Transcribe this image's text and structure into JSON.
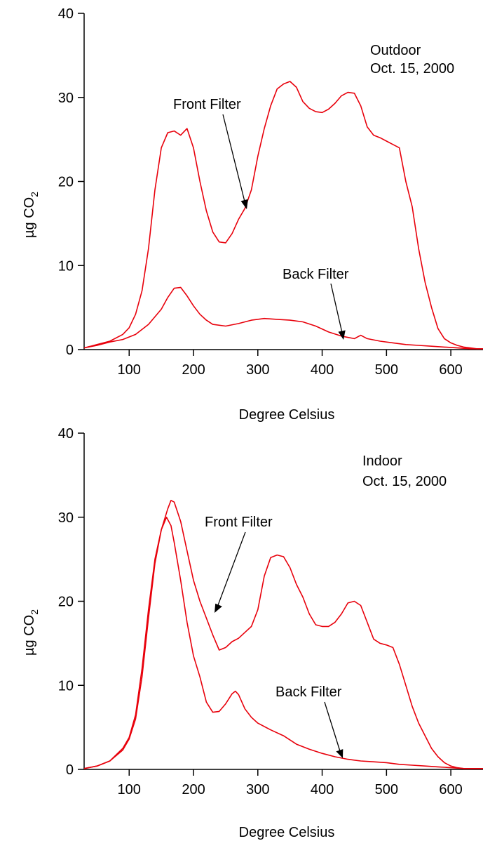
{
  "chart_data": [
    {
      "type": "line",
      "annotations": {
        "location": "Outdoor",
        "date": "Oct. 15, 2000",
        "front_label": "Front Filter",
        "back_label": "Back Filter"
      },
      "xlabel": "Degree Celsius",
      "ylabel_main": "µg CO",
      "ylabel_sub": "2",
      "xlim": [
        30,
        650
      ],
      "ylim": [
        0,
        40
      ],
      "xticks": [
        100,
        200,
        300,
        400,
        500,
        600
      ],
      "yticks": [
        0,
        10,
        20,
        30,
        40
      ],
      "line_color": "#e8000b",
      "series": [
        {
          "name": "Front Filter",
          "x": [
            30,
            50,
            70,
            90,
            100,
            110,
            120,
            130,
            140,
            150,
            160,
            170,
            180,
            190,
            200,
            210,
            220,
            230,
            240,
            250,
            260,
            270,
            280,
            290,
            300,
            310,
            320,
            330,
            340,
            350,
            360,
            370,
            380,
            390,
            400,
            410,
            420,
            430,
            440,
            450,
            460,
            470,
            480,
            490,
            500,
            510,
            520,
            530,
            540,
            550,
            560,
            570,
            580,
            590,
            600,
            610,
            620,
            630,
            640,
            650
          ],
          "y": [
            0.2,
            0.6,
            1.0,
            1.8,
            2.6,
            4.2,
            7,
            12,
            19,
            24,
            25.8,
            26,
            25.5,
            26.3,
            24,
            20,
            16.5,
            14,
            12.8,
            12.7,
            13.8,
            15.5,
            16.8,
            19,
            23,
            26.3,
            29,
            31,
            31.6,
            31.9,
            31.2,
            29.5,
            28.7,
            28.3,
            28.2,
            28.6,
            29.3,
            30.2,
            30.6,
            30.5,
            29,
            26.5,
            25.5,
            25.2,
            24.8,
            24.4,
            24,
            20,
            17,
            12,
            8,
            5,
            2.5,
            1.3,
            0.8,
            0.5,
            0.3,
            0.2,
            0.1,
            0.1
          ]
        },
        {
          "name": "Back Filter",
          "x": [
            30,
            50,
            70,
            90,
            110,
            130,
            150,
            160,
            170,
            180,
            190,
            200,
            210,
            220,
            230,
            250,
            270,
            290,
            310,
            330,
            350,
            370,
            390,
            410,
            430,
            450,
            460,
            470,
            490,
            510,
            530,
            550,
            570,
            590,
            610,
            630,
            650
          ],
          "y": [
            0.2,
            0.5,
            0.9,
            1.2,
            1.8,
            3.0,
            4.8,
            6.2,
            7.3,
            7.4,
            6.4,
            5.2,
            4.2,
            3.5,
            3.0,
            2.8,
            3.1,
            3.5,
            3.7,
            3.6,
            3.5,
            3.3,
            2.8,
            2.1,
            1.6,
            1.3,
            1.7,
            1.3,
            1.0,
            0.8,
            0.6,
            0.5,
            0.4,
            0.3,
            0.2,
            0.1,
            0.1
          ]
        }
      ]
    },
    {
      "type": "line",
      "annotations": {
        "location": "Indoor",
        "date": "Oct. 15, 2000",
        "front_label": "Front Filter",
        "back_label": "Back Filter"
      },
      "xlabel": "Degree Celsius",
      "ylabel_main": "µg CO",
      "ylabel_sub": "2",
      "xlim": [
        30,
        650
      ],
      "ylim": [
        0,
        40
      ],
      "xticks": [
        100,
        200,
        300,
        400,
        500,
        600
      ],
      "yticks": [
        0,
        10,
        20,
        30,
        40
      ],
      "line_color": "#e8000b",
      "series": [
        {
          "name": "Front Filter",
          "x": [
            30,
            50,
            70,
            90,
            100,
            110,
            120,
            130,
            140,
            150,
            160,
            165,
            170,
            180,
            190,
            200,
            210,
            220,
            230,
            240,
            250,
            260,
            270,
            280,
            290,
            300,
            310,
            320,
            330,
            340,
            350,
            360,
            370,
            380,
            390,
            400,
            410,
            420,
            430,
            440,
            450,
            460,
            470,
            480,
            490,
            500,
            510,
            520,
            530,
            540,
            550,
            560,
            570,
            580,
            590,
            600,
            610,
            620,
            630,
            640,
            650
          ],
          "y": [
            0.1,
            0.4,
            1.0,
            2.5,
            3.8,
            6.5,
            12,
            19,
            25,
            28.5,
            31,
            32,
            31.8,
            29.5,
            26,
            22.5,
            20,
            18,
            16,
            14.2,
            14.5,
            15.2,
            15.6,
            16.3,
            17,
            19,
            23,
            25.2,
            25.5,
            25.3,
            24,
            22,
            20.5,
            18.5,
            17.2,
            17,
            17,
            17.5,
            18.5,
            19.8,
            20,
            19.5,
            17.5,
            15.5,
            15,
            14.8,
            14.5,
            12.5,
            10,
            7.5,
            5.5,
            4,
            2.5,
            1.5,
            0.8,
            0.4,
            0.2,
            0.1,
            0.1,
            0.1,
            0.1
          ]
        },
        {
          "name": "Back Filter",
          "x": [
            30,
            50,
            70,
            90,
            100,
            110,
            120,
            130,
            140,
            150,
            158,
            165,
            170,
            180,
            190,
            200,
            210,
            220,
            230,
            240,
            250,
            260,
            265,
            270,
            280,
            290,
            300,
            320,
            340,
            360,
            380,
            400,
            420,
            440,
            460,
            480,
            500,
            520,
            540,
            560,
            580,
            600,
            620,
            640,
            650
          ],
          "y": [
            0.1,
            0.4,
            1.0,
            2.3,
            3.6,
            6,
            11,
            18,
            24.5,
            28.5,
            30,
            29,
            27,
            22.5,
            17.5,
            13.5,
            11,
            8,
            6.8,
            6.9,
            7.8,
            9,
            9.3,
            8.9,
            7.2,
            6.2,
            5.5,
            4.7,
            4.0,
            3.0,
            2.4,
            1.9,
            1.5,
            1.2,
            1.0,
            0.9,
            0.8,
            0.6,
            0.5,
            0.4,
            0.3,
            0.2,
            0.1,
            0.1,
            0.1
          ]
        }
      ]
    }
  ]
}
